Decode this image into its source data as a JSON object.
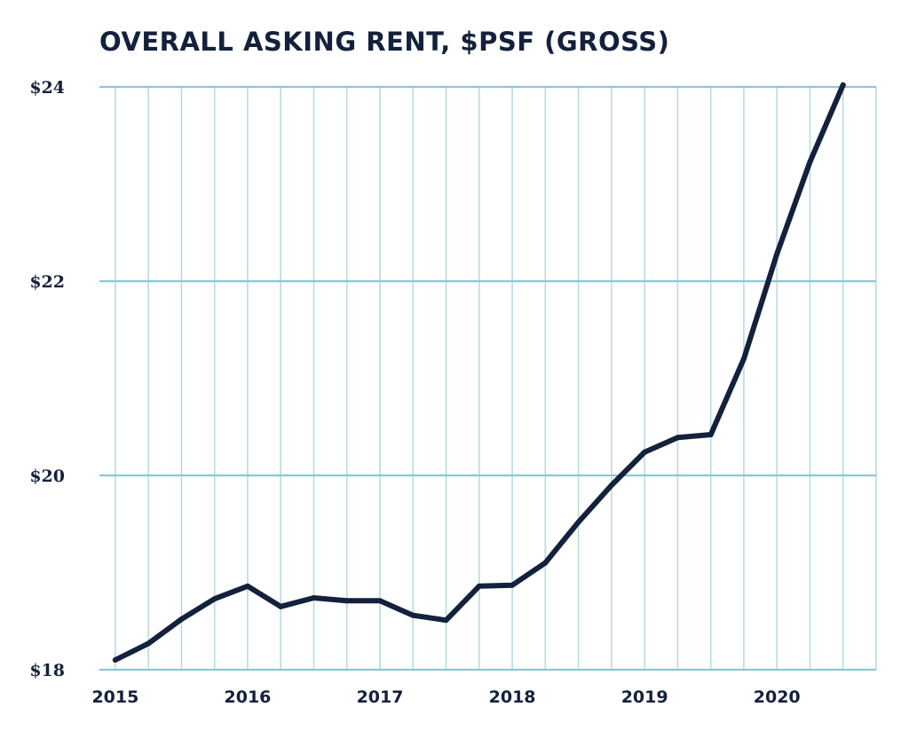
{
  "chart_data": {
    "type": "line",
    "title": "OVERALL ASKING RENT, $PSF (GROSS)",
    "xlabel": "",
    "ylabel": "",
    "y_tick_labels": [
      "$18",
      "$20",
      "$22",
      "$24"
    ],
    "y_ticks": [
      18,
      20,
      22,
      24
    ],
    "ylim": [
      18,
      24
    ],
    "x_tick_labels": [
      "2015",
      "2016",
      "2017",
      "2018",
      "2019",
      "2020"
    ],
    "x_ticks": [
      2015.0,
      2016.0,
      2017.0,
      2018.0,
      2019.0,
      2020.0
    ],
    "xlim": [
      2014.88,
      2020.75
    ],
    "grid": true,
    "legend": "none",
    "series": [
      {
        "x": [
          2015.0,
          2015.25,
          2015.5,
          2015.75,
          2016.0,
          2016.25,
          2016.5,
          2016.75,
          2017.0,
          2017.25,
          2017.5,
          2017.75,
          2018.0,
          2018.25,
          2018.5,
          2018.75,
          2019.0,
          2019.25,
          2019.5,
          2019.75,
          2020.0,
          2020.25,
          2020.5
        ],
        "values": [
          18.1,
          18.27,
          18.52,
          18.73,
          18.86,
          18.65,
          18.74,
          18.71,
          18.71,
          18.56,
          18.51,
          18.86,
          18.87,
          19.1,
          19.52,
          19.9,
          20.24,
          20.39,
          20.42,
          21.2,
          22.28,
          23.23,
          24.02
        ],
        "color": "#13213c"
      }
    ]
  },
  "colors": {
    "line": "#13213c",
    "grid": "#b9dbe4",
    "major_grid": "#8cc6d4"
  }
}
